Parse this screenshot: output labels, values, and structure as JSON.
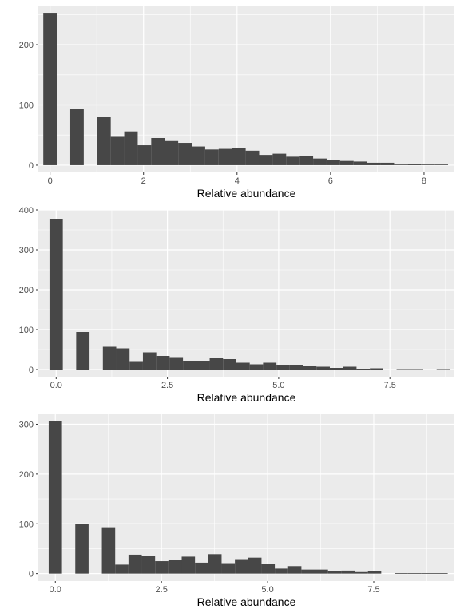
{
  "colors": {
    "panel": "#ebebeb",
    "grid_major": "#ffffff",
    "bar": "#474747"
  },
  "chart_data": [
    {
      "type": "bar",
      "xlabel": "Relative abundance",
      "ylabel": "",
      "xlim": [
        -0.25,
        8.65
      ],
      "ylim": [
        -12,
        265
      ],
      "xticks": [
        0,
        2,
        4,
        6,
        8
      ],
      "xtick_labels": [
        "0",
        "2",
        "4",
        "6",
        "8"
      ],
      "yticks": [
        0,
        100,
        200
      ],
      "ytick_labels": [
        "0",
        "100",
        "200"
      ],
      "bin_width": 0.2886,
      "bin_start": -0.1443,
      "values": [
        253,
        0,
        94,
        0,
        80,
        47,
        56,
        33,
        45,
        40,
        37,
        31,
        26,
        27,
        29,
        24,
        17,
        19,
        14,
        15,
        11,
        8,
        7,
        6,
        4,
        4,
        1,
        2,
        1,
        1
      ]
    },
    {
      "type": "bar",
      "xlabel": "Relative abundance",
      "ylabel": "",
      "xlim": [
        -0.4,
        8.95
      ],
      "ylim": [
        -18,
        400
      ],
      "xticks": [
        0,
        2.5,
        5,
        7.5
      ],
      "xtick_labels": [
        "0.0",
        "2.5",
        "5.0",
        "7.5"
      ],
      "yticks": [
        0,
        100,
        200,
        300,
        400
      ],
      "ytick_labels": [
        "0",
        "100",
        "200",
        "300",
        "400"
      ],
      "bin_width": 0.3,
      "bin_start": -0.15,
      "values": [
        378,
        0,
        94,
        0,
        57,
        53,
        21,
        43,
        34,
        31,
        22,
        22,
        29,
        26,
        17,
        13,
        17,
        12,
        12,
        9,
        7,
        4,
        7,
        2,
        3,
        0,
        1,
        1,
        0,
        1
      ]
    },
    {
      "type": "bar",
      "xlabel": "Relative abundance",
      "ylabel": "",
      "xlim": [
        -0.4,
        9.4
      ],
      "ylim": [
        -15,
        320
      ],
      "xticks": [
        0,
        2.5,
        5,
        7.5
      ],
      "xtick_labels": [
        "0.0",
        "2.5",
        "5.0",
        "7.5"
      ],
      "yticks": [
        0,
        100,
        200,
        300
      ],
      "ytick_labels": [
        "0",
        "100",
        "200",
        "300"
      ],
      "bin_width": 0.3133,
      "bin_start": -0.1567,
      "values": [
        307,
        0,
        99,
        0,
        93,
        18,
        38,
        35,
        25,
        28,
        34,
        22,
        39,
        21,
        29,
        32,
        20,
        10,
        15,
        8,
        8,
        5,
        6,
        3,
        5,
        0,
        1,
        1,
        1,
        1
      ]
    }
  ]
}
